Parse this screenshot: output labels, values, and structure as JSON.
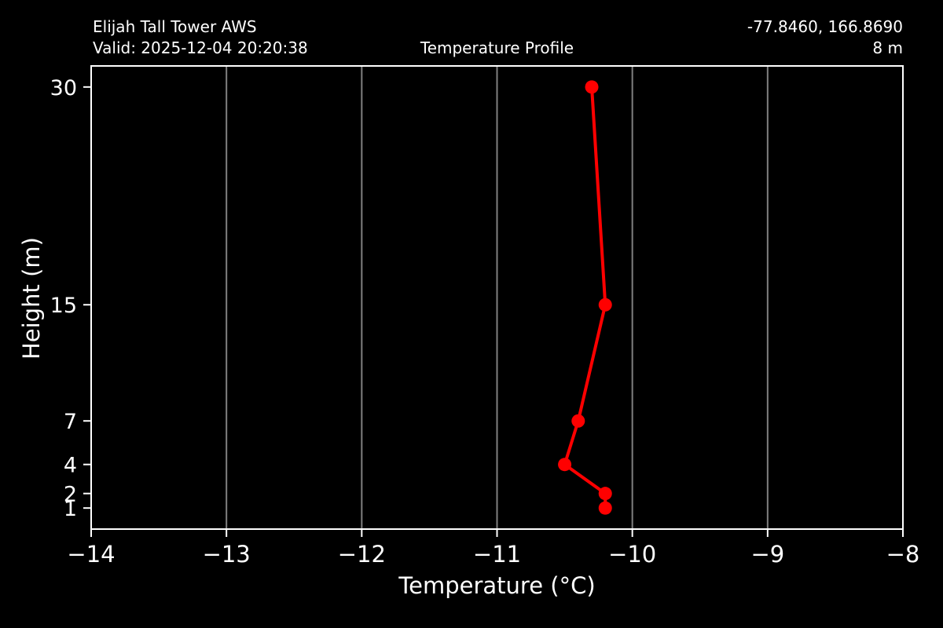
{
  "colors": {
    "background": "#000000",
    "text": "#ffffff",
    "axes": "#ffffff",
    "grid": "#7f7f7f",
    "line": "#ff0000"
  },
  "header": {
    "station_name": "Elijah Tall Tower AWS",
    "valid_time": "Valid: 2025-12-04 20:20:38",
    "plot_title": "Temperature Profile",
    "coordinates": "-77.8460, 166.8690",
    "elevation": "8 m"
  },
  "chart_data": {
    "type": "line",
    "title": "Temperature Profile",
    "xlabel": "Temperature (°C)",
    "ylabel": "Height (m)",
    "xlim": [
      -14,
      -8
    ],
    "ylim": [
      -0.45,
      31.45
    ],
    "x_ticks": [
      -14,
      -13,
      -12,
      -11,
      -10,
      -9,
      -8
    ],
    "x_tick_labels": [
      "−14",
      "−13",
      "−12",
      "−11",
      "−10",
      "−9",
      "−8"
    ],
    "y_ticks": [
      1,
      2,
      4,
      7,
      15,
      30
    ],
    "y_tick_labels": [
      "1",
      "2",
      "4",
      "7",
      "15",
      "30"
    ],
    "grid": {
      "vertical": true,
      "horizontal": false
    },
    "legend": "none",
    "series": [
      {
        "name": "temperature_profile",
        "color": "#ff0000",
        "marker": "circle",
        "points": [
          {
            "height_m": 1,
            "temperature_c": -10.2
          },
          {
            "height_m": 2,
            "temperature_c": -10.2
          },
          {
            "height_m": 4,
            "temperature_c": -10.5
          },
          {
            "height_m": 7,
            "temperature_c": -10.4
          },
          {
            "height_m": 15,
            "temperature_c": -10.2
          },
          {
            "height_m": 30,
            "temperature_c": -10.3
          }
        ]
      }
    ]
  }
}
